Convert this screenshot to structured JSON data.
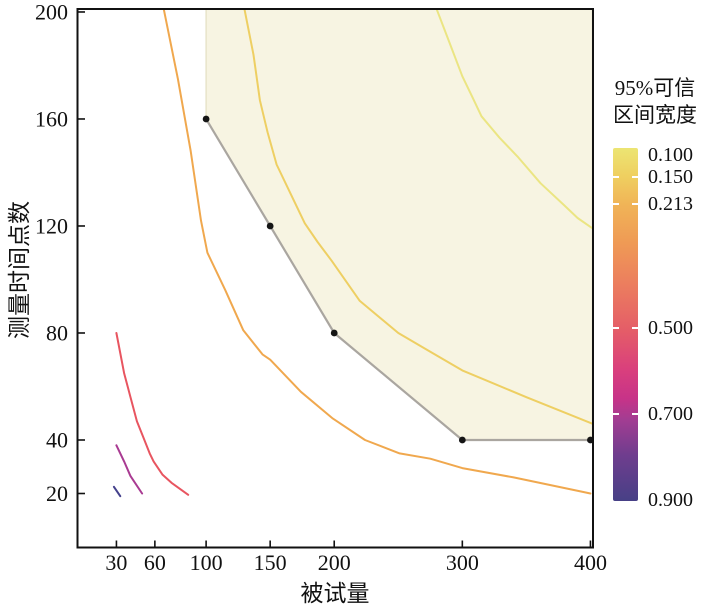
{
  "figure": {
    "background": "#ffffff",
    "plot_border_color": "#111111"
  },
  "axes": {
    "x": {
      "label": "被试量",
      "tick_values": [
        30,
        60,
        100,
        150,
        200,
        300,
        400
      ],
      "tick_labels": [
        "30",
        "60",
        "100",
        "150",
        "200",
        "300",
        "400"
      ],
      "range": [
        0,
        402
      ]
    },
    "y": {
      "label": "测量时间点数",
      "tick_values": [
        20,
        40,
        80,
        120,
        160,
        200
      ],
      "tick_labels": [
        "20",
        "40",
        "80",
        "120",
        "160",
        "200"
      ],
      "range": [
        0,
        201
      ]
    }
  },
  "legend": {
    "title_lines": [
      "95%可信",
      "区间宽度"
    ],
    "ticks": [
      {
        "value": 0.1,
        "label": "0.100",
        "notch": false
      },
      {
        "value": 0.15,
        "label": "0.150",
        "notch": true
      },
      {
        "value": 0.213,
        "label": "0.213",
        "notch": true
      },
      {
        "value": 0.5,
        "label": "0.500",
        "notch": true
      },
      {
        "value": 0.7,
        "label": "0.700",
        "notch": true
      },
      {
        "value": 0.9,
        "label": "0.900",
        "notch": false
      }
    ],
    "gradient": [
      {
        "at": 0.0,
        "color": "#ece573"
      },
      {
        "at": 0.08,
        "color": "#efcf60"
      },
      {
        "at": 0.16,
        "color": "#f0b457"
      },
      {
        "at": 0.27,
        "color": "#ef9a55"
      },
      {
        "at": 0.38,
        "color": "#ec7f5e"
      },
      {
        "at": 0.52,
        "color": "#e45c68"
      },
      {
        "at": 0.63,
        "color": "#d93f7d"
      },
      {
        "at": 0.71,
        "color": "#c73388"
      },
      {
        "at": 0.77,
        "color": "#a23d92"
      },
      {
        "at": 0.87,
        "color": "#6f3d8e"
      },
      {
        "at": 1.0,
        "color": "#474086"
      }
    ]
  },
  "chart_data": {
    "type": "contour",
    "title": "",
    "xlabel": "被试量",
    "ylabel": "测量时间点数",
    "zlabel": "95%可信区间宽度",
    "xlim": [
      0,
      402
    ],
    "ylim": [
      0,
      201
    ],
    "grid": false,
    "legend_position": "right",
    "contour_levels": [
      {
        "level": 0.1,
        "color": "#ebe583",
        "points": [
          [
            280,
            201
          ],
          [
            288,
            191
          ],
          [
            300,
            176
          ],
          [
            308,
            168
          ],
          [
            315,
            161
          ],
          [
            329,
            153
          ],
          [
            343,
            146
          ],
          [
            361,
            136
          ],
          [
            379,
            128
          ],
          [
            390,
            123
          ],
          [
            402,
            119
          ]
        ]
      },
      {
        "level": 0.15,
        "color": "#eecf63",
        "points": [
          [
            130,
            201
          ],
          [
            137,
            184
          ],
          [
            142,
            167
          ],
          [
            148,
            155
          ],
          [
            155,
            143
          ],
          [
            166,
            132
          ],
          [
            177,
            121
          ],
          [
            187,
            114
          ],
          [
            198,
            107
          ],
          [
            220,
            92
          ],
          [
            250,
            80
          ],
          [
            275,
            73
          ],
          [
            300,
            66
          ],
          [
            350,
            56
          ],
          [
            376,
            51
          ],
          [
            402,
            46
          ]
        ]
      },
      {
        "level": 0.213,
        "color": "#f0a84e",
        "points": [
          [
            67,
            201
          ],
          [
            78,
            175
          ],
          [
            88,
            148
          ],
          [
            96,
            122
          ],
          [
            101,
            110
          ],
          [
            115,
            96
          ],
          [
            129,
            81
          ],
          [
            144,
            72
          ],
          [
            150,
            70
          ],
          [
            174,
            58
          ],
          [
            199,
            48
          ],
          [
            224,
            40
          ],
          [
            251,
            35
          ],
          [
            275,
            33
          ],
          [
            300,
            29.5
          ],
          [
            340,
            26
          ],
          [
            394,
            20.6
          ],
          [
            400,
            20
          ]
        ]
      },
      {
        "level": 0.5,
        "color": "#e85560",
        "points": [
          [
            30,
            80
          ],
          [
            36,
            65
          ],
          [
            41,
            56
          ],
          [
            46,
            47
          ],
          [
            51,
            41
          ],
          [
            56,
            35
          ],
          [
            59,
            32
          ],
          [
            66,
            27
          ],
          [
            73,
            24
          ],
          [
            86,
            19.5
          ]
        ]
      },
      {
        "level": 0.7,
        "color": "#a93b92",
        "points": [
          [
            30,
            38
          ],
          [
            36,
            32
          ],
          [
            41,
            26.5
          ],
          [
            50,
            20
          ]
        ]
      },
      {
        "level": 0.9,
        "color": "#44418c",
        "points": [
          [
            28,
            22.5
          ],
          [
            33,
            19
          ]
        ]
      }
    ],
    "shaded_region": {
      "fill": "#f7f4e2",
      "stroke": "#e7e3c8",
      "points": [
        [
          100,
          201
        ],
        [
          100,
          160
        ],
        [
          150,
          120
        ],
        [
          200,
          80
        ],
        [
          300,
          40
        ],
        [
          401.5,
          40
        ],
        [
          401.5,
          201
        ]
      ]
    },
    "design_frontier": {
      "color": "#aaa6a0",
      "points": [
        [
          100,
          160
        ],
        [
          150,
          120
        ],
        [
          200,
          80
        ],
        [
          300,
          40
        ],
        [
          400,
          40
        ]
      ]
    },
    "markers": {
      "color": "#151515",
      "points": [
        [
          100,
          160
        ],
        [
          150,
          120
        ],
        [
          200,
          80
        ],
        [
          300,
          40
        ],
        [
          400,
          40
        ]
      ]
    }
  }
}
